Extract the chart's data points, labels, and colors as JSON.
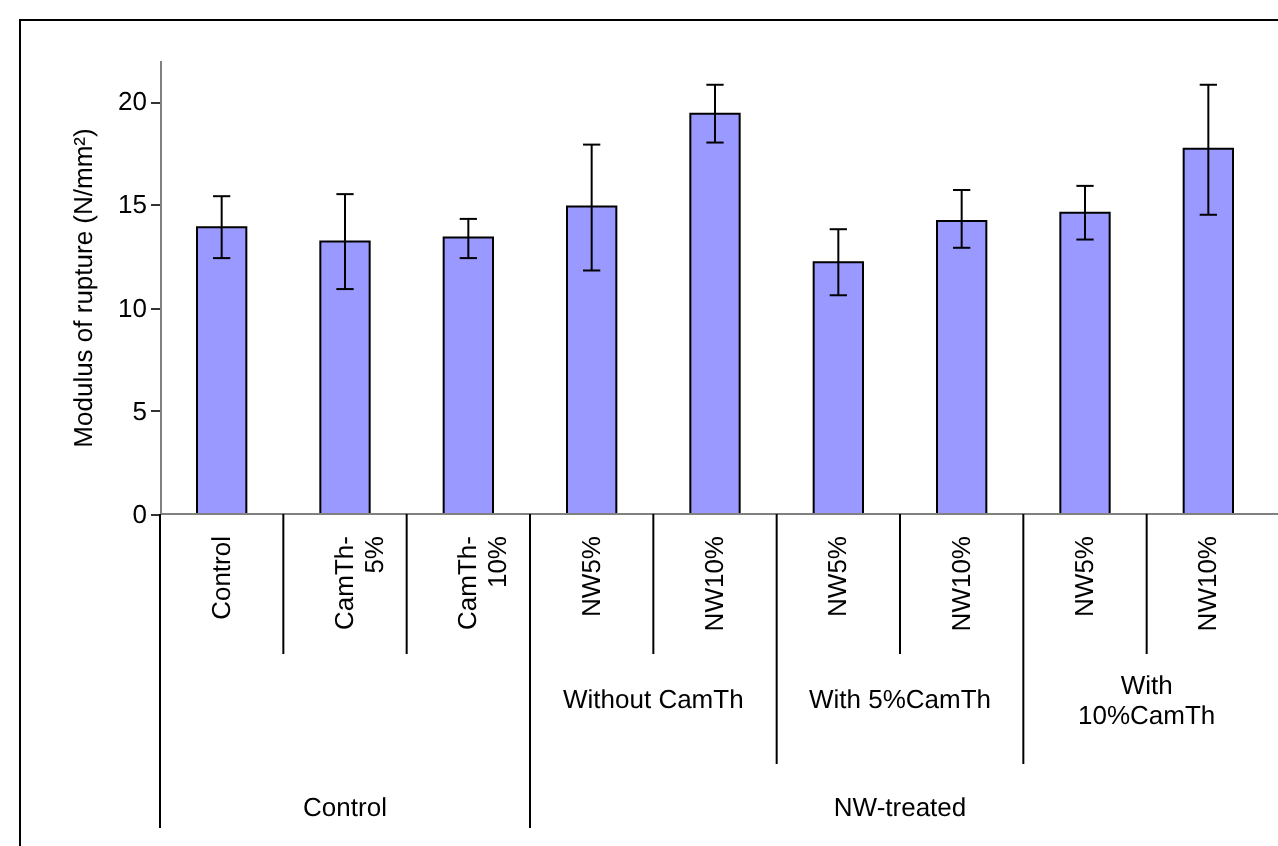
{
  "chart_data": {
    "type": "bar",
    "ylabel": "Modulus of rupture (N/mm²)",
    "categories": [
      "Control",
      "CamTh-5%",
      "CamTh-10%",
      "NW5%",
      "NW10%",
      "NW5%",
      "NW10%",
      "NW5%",
      "NW10%"
    ],
    "values": [
      13.9,
      13.2,
      13.4,
      14.9,
      19.4,
      12.2,
      14.2,
      14.6,
      17.7
    ],
    "errors": [
      [
        12.4,
        15.4
      ],
      [
        10.9,
        15.5
      ],
      [
        12.4,
        14.3
      ],
      [
        11.8,
        17.9
      ],
      [
        18.0,
        20.8
      ],
      [
        10.6,
        13.8
      ],
      [
        12.9,
        15.7
      ],
      [
        13.3,
        15.9
      ],
      [
        14.5,
        20.8
      ]
    ],
    "color": "#9999ff",
    "ylim": [
      0,
      22
    ],
    "yticks": [
      0,
      5,
      10,
      15,
      20
    ],
    "grid": false,
    "annotations": [
      "Without CamTh",
      "With 5%CamTh",
      "With 10%CamTh",
      "Control",
      "NW-treated"
    ]
  }
}
